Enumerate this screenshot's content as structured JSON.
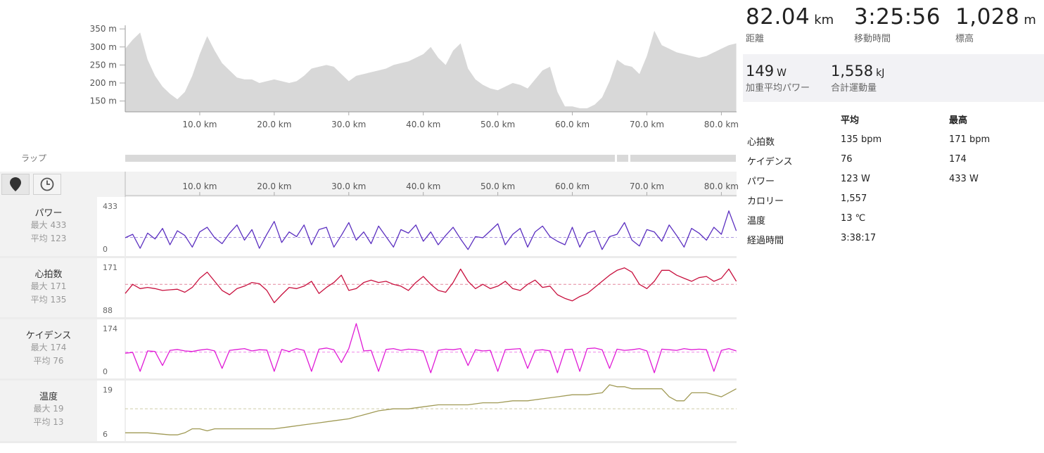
{
  "summary": {
    "distance": {
      "value": "82.04",
      "unit": "km",
      "label": "距離"
    },
    "moving_time": {
      "value": "3:25:56",
      "label": "移動時間"
    },
    "elevation": {
      "value": "1,028",
      "unit": "m",
      "label": "標高"
    },
    "weighted_power": {
      "value": "149",
      "unit": "W",
      "label": "加重平均パワー"
    },
    "total_work": {
      "value": "1,558",
      "unit": "kJ",
      "label": "合計運動量"
    }
  },
  "stats_table": {
    "col_avg": "平均",
    "col_max": "最高",
    "rows": [
      {
        "label": "心拍数",
        "avg": "135 bpm",
        "max": "171 bpm"
      },
      {
        "label": "ケイデンス",
        "avg": "76",
        "max": "174"
      },
      {
        "label": "パワー",
        "avg": "123 W",
        "max": "433 W"
      },
      {
        "label": "カロリー",
        "avg": "1,557",
        "max": ""
      },
      {
        "label": "温度",
        "avg": "13 ℃",
        "max": ""
      },
      {
        "label": "経過時間",
        "avg": "3:38:17",
        "max": ""
      }
    ]
  },
  "laps_label": "ラップ",
  "tabs": [
    {
      "name": "map",
      "icon": "map-pin-icon"
    },
    {
      "name": "time",
      "icon": "clock-icon"
    }
  ],
  "x_axis_ticks": [
    "10.0 km",
    "20.0 km",
    "30.0 km",
    "40.0 km",
    "50.0 km",
    "60.0 km",
    "70.0 km",
    "80.0 km"
  ],
  "elevation_ticks": [
    "350 m",
    "300 m",
    "250 m",
    "200 m",
    "150 m"
  ],
  "metrics": [
    {
      "key": "power",
      "name": "パワー",
      "max_label": "最大 433",
      "avg_label": "平均 123",
      "ymax": "433",
      "ymin": "0",
      "color": "#5b2fc0"
    },
    {
      "key": "hr",
      "name": "心拍数",
      "max_label": "最大 171",
      "avg_label": "平均 135",
      "ymax": "171",
      "ymin": "88",
      "color": "#c8103e"
    },
    {
      "key": "cadence",
      "name": "ケイデンス",
      "max_label": "最大 174",
      "avg_label": "平均 76",
      "ymax": "174",
      "ymin": "0",
      "color": "#e01ad6"
    },
    {
      "key": "temp",
      "name": "温度",
      "max_label": "最大 19",
      "avg_label": "平均 13",
      "ymax": "19",
      "ymin": "6",
      "color": "#a09a55"
    }
  ],
  "chart_data": [
    {
      "type": "area",
      "series_key": "elevation",
      "x": [
        0,
        1,
        2,
        3,
        4,
        5,
        6,
        7,
        8,
        9,
        10,
        11,
        12,
        13,
        14,
        15,
        16,
        17,
        18,
        19,
        20,
        21,
        22,
        23,
        24,
        25,
        26,
        27,
        28,
        29,
        30,
        31,
        32,
        33,
        34,
        35,
        36,
        37,
        38,
        39,
        40,
        41,
        42,
        43,
        44,
        45,
        46,
        47,
        48,
        49,
        50,
        51,
        52,
        53,
        54,
        55,
        56,
        57,
        58,
        59,
        60,
        61,
        62,
        63,
        64,
        65,
        66,
        67,
        68,
        69,
        70,
        71,
        72,
        73,
        74,
        75,
        76,
        77,
        78,
        79,
        80,
        81,
        82
      ],
      "values": [
        295,
        320,
        340,
        265,
        220,
        190,
        170,
        155,
        175,
        220,
        280,
        330,
        290,
        255,
        235,
        215,
        210,
        210,
        200,
        205,
        210,
        205,
        200,
        205,
        220,
        240,
        245,
        250,
        245,
        225,
        205,
        220,
        225,
        230,
        235,
        240,
        250,
        255,
        260,
        270,
        280,
        300,
        270,
        250,
        290,
        310,
        240,
        210,
        195,
        185,
        180,
        190,
        200,
        195,
        185,
        210,
        235,
        245,
        175,
        135,
        135,
        130,
        130,
        140,
        160,
        205,
        265,
        250,
        245,
        225,
        275,
        345,
        305,
        295,
        285,
        280,
        275,
        270,
        275,
        285,
        295,
        305,
        310
      ],
      "xlim": [
        0,
        82.04
      ],
      "ylim": [
        120,
        360
      ]
    },
    {
      "type": "line",
      "series_key": "power",
      "name": "パワー",
      "x": [
        0,
        1,
        2,
        3,
        4,
        5,
        6,
        7,
        8,
        9,
        10,
        11,
        12,
        13,
        14,
        15,
        16,
        17,
        18,
        19,
        20,
        21,
        22,
        23,
        24,
        25,
        26,
        27,
        28,
        29,
        30,
        31,
        32,
        33,
        34,
        35,
        36,
        37,
        38,
        39,
        40,
        41,
        42,
        43,
        44,
        45,
        46,
        47,
        48,
        49,
        50,
        51,
        52,
        53,
        54,
        55,
        56,
        57,
        58,
        59,
        60,
        61,
        62,
        63,
        64,
        65,
        66,
        67,
        68,
        69,
        70,
        71,
        72,
        73,
        74,
        75,
        76,
        77,
        78,
        79,
        80,
        81,
        82
      ],
      "values": [
        120,
        150,
        30,
        160,
        110,
        200,
        60,
        180,
        140,
        40,
        170,
        210,
        120,
        70,
        160,
        230,
        100,
        190,
        30,
        150,
        260,
        80,
        170,
        130,
        230,
        60,
        190,
        210,
        40,
        140,
        250,
        100,
        170,
        70,
        220,
        130,
        40,
        190,
        160,
        230,
        90,
        170,
        60,
        140,
        210,
        110,
        20,
        130,
        120,
        180,
        240,
        60,
        150,
        200,
        40,
        170,
        220,
        130,
        90,
        60,
        210,
        40,
        160,
        180,
        20,
        130,
        150,
        250,
        100,
        50,
        190,
        170,
        90,
        230,
        140,
        40,
        200,
        160,
        100,
        210,
        150,
        350,
        180
      ],
      "ylim": [
        0,
        433
      ],
      "avg": 123
    },
    {
      "type": "line",
      "series_key": "hr",
      "name": "心拍数",
      "x": [
        0,
        1,
        2,
        3,
        4,
        5,
        6,
        7,
        8,
        9,
        10,
        11,
        12,
        13,
        14,
        15,
        16,
        17,
        18,
        19,
        20,
        21,
        22,
        23,
        24,
        25,
        26,
        27,
        28,
        29,
        30,
        31,
        32,
        33,
        34,
        35,
        36,
        37,
        38,
        39,
        40,
        41,
        42,
        43,
        44,
        45,
        46,
        47,
        48,
        49,
        50,
        51,
        52,
        53,
        54,
        55,
        56,
        57,
        58,
        59,
        60,
        61,
        62,
        63,
        64,
        65,
        66,
        67,
        68,
        69,
        70,
        71,
        72,
        73,
        74,
        75,
        76,
        77,
        78,
        79,
        80,
        81,
        82
      ],
      "values": [
        120,
        135,
        128,
        130,
        128,
        125,
        126,
        127,
        122,
        130,
        145,
        155,
        140,
        125,
        118,
        128,
        132,
        138,
        136,
        125,
        105,
        118,
        130,
        128,
        132,
        140,
        120,
        130,
        138,
        150,
        125,
        128,
        138,
        142,
        138,
        140,
        135,
        132,
        125,
        138,
        148,
        135,
        125,
        122,
        138,
        160,
        140,
        128,
        135,
        128,
        132,
        140,
        128,
        125,
        135,
        142,
        130,
        132,
        118,
        112,
        108,
        115,
        120,
        130,
        140,
        150,
        158,
        162,
        155,
        135,
        128,
        140,
        158,
        158,
        150,
        145,
        140,
        146,
        148,
        140,
        145,
        160,
        140
      ],
      "ylim": [
        88,
        171
      ],
      "avg": 135
    },
    {
      "type": "line",
      "series_key": "cadence",
      "name": "ケイデンス",
      "x": [
        0,
        1,
        2,
        3,
        4,
        5,
        6,
        7,
        8,
        9,
        10,
        11,
        12,
        13,
        14,
        15,
        16,
        17,
        18,
        19,
        20,
        21,
        22,
        23,
        24,
        25,
        26,
        27,
        28,
        29,
        30,
        31,
        32,
        33,
        34,
        35,
        36,
        37,
        38,
        39,
        40,
        41,
        42,
        43,
        44,
        45,
        46,
        47,
        48,
        49,
        50,
        51,
        52,
        53,
        54,
        55,
        56,
        57,
        58,
        59,
        60,
        61,
        62,
        63,
        64,
        65,
        66,
        67,
        68,
        69,
        70,
        71,
        72,
        73,
        74,
        75,
        76,
        77,
        78,
        79,
        80,
        81,
        82
      ],
      "values": [
        72,
        75,
        10,
        80,
        78,
        30,
        82,
        85,
        80,
        78,
        83,
        86,
        80,
        20,
        82,
        85,
        88,
        80,
        84,
        83,
        10,
        85,
        78,
        88,
        82,
        10,
        86,
        90,
        84,
        40,
        88,
        174,
        80,
        82,
        10,
        85,
        88,
        82,
        86,
        84,
        80,
        5,
        82,
        86,
        84,
        88,
        30,
        84,
        80,
        82,
        10,
        84,
        86,
        88,
        20,
        82,
        84,
        80,
        5,
        84,
        86,
        10,
        88,
        90,
        84,
        20,
        86,
        82,
        84,
        88,
        80,
        5,
        86,
        84,
        82,
        88,
        84,
        86,
        84,
        10,
        82,
        88,
        80
      ],
      "ylim": [
        0,
        174
      ],
      "avg": 76
    },
    {
      "type": "line",
      "series_key": "temp",
      "name": "温度",
      "x": [
        0,
        3,
        6,
        7,
        8,
        9,
        10,
        11,
        12,
        14,
        16,
        18,
        20,
        22,
        24,
        26,
        28,
        30,
        32,
        34,
        36,
        38,
        40,
        42,
        44,
        46,
        48,
        50,
        52,
        54,
        56,
        58,
        60,
        62,
        64,
        65,
        66,
        67,
        68,
        70,
        72,
        73,
        74,
        75,
        76,
        78,
        80,
        81,
        82
      ],
      "values": [
        7,
        7,
        6.5,
        6.5,
        7,
        8,
        8,
        7.5,
        8,
        8,
        8,
        8,
        8,
        8.5,
        9,
        9.5,
        10,
        10.5,
        11.5,
        12.5,
        13,
        13,
        13.5,
        14,
        14,
        14,
        14.5,
        14.5,
        15,
        15,
        15.5,
        16,
        16.5,
        16.5,
        17,
        19,
        18.5,
        18.5,
        18,
        18,
        18,
        16,
        15,
        15,
        17,
        17,
        16,
        17,
        18
      ],
      "ylim": [
        6,
        19
      ],
      "avg": 13
    }
  ]
}
